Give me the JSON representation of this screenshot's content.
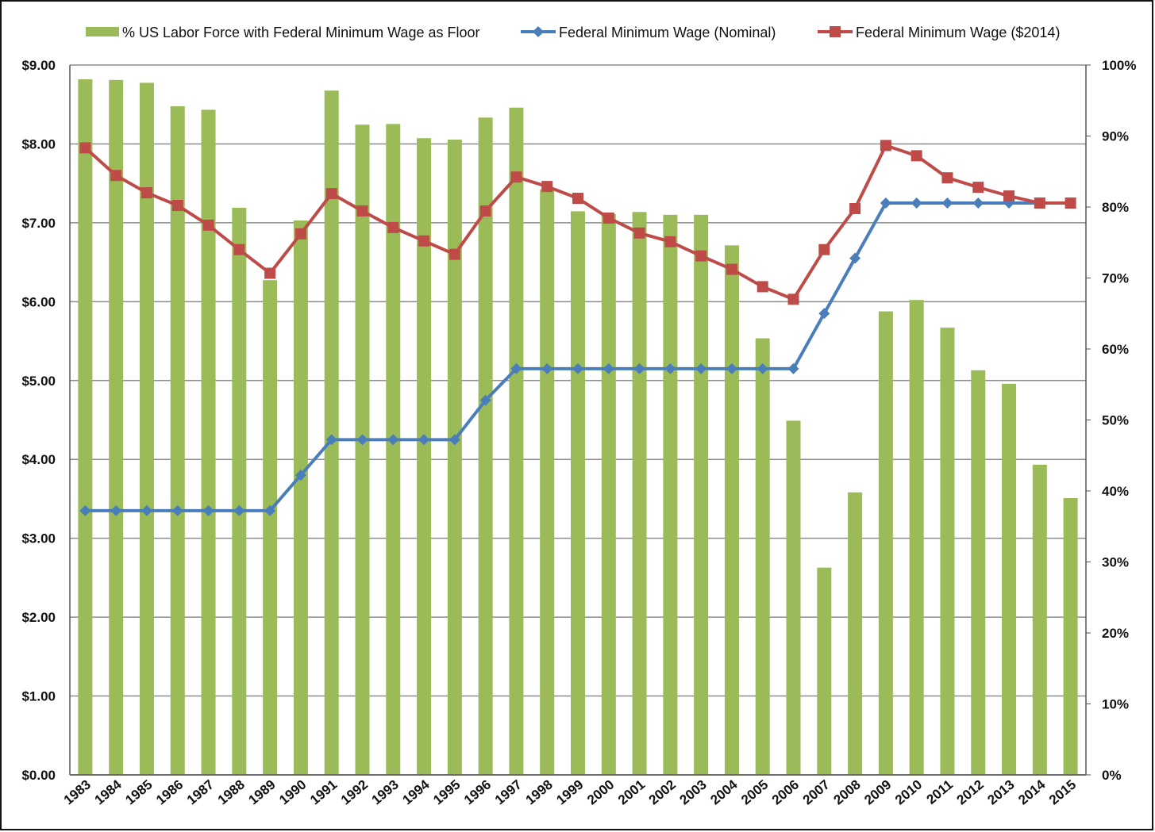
{
  "chart_data": {
    "type": "bar-line",
    "categories": [
      "1983",
      "1984",
      "1985",
      "1986",
      "1987",
      "1988",
      "1989",
      "1990",
      "1991",
      "1992",
      "1993",
      "1994",
      "1995",
      "1996",
      "1997",
      "1998",
      "1999",
      "2000",
      "2001",
      "2002",
      "2003",
      "2004",
      "2005",
      "2006",
      "2007",
      "2008",
      "2009",
      "2010",
      "2011",
      "2012",
      "2013",
      "2014",
      "2015"
    ],
    "series": [
      {
        "name": "% US Labor Force with Federal Minimum Wage as Floor",
        "type": "bar",
        "axis": "y2",
        "color": "#9bbb59",
        "values": [
          98.0,
          97.9,
          97.5,
          94.2,
          93.7,
          79.9,
          69.7,
          78.1,
          96.4,
          91.6,
          91.7,
          89.7,
          89.5,
          92.6,
          94.0,
          82.5,
          79.4,
          79.0,
          79.3,
          78.9,
          78.9,
          74.6,
          61.5,
          49.9,
          29.2,
          39.8,
          65.3,
          66.9,
          63.0,
          57.0,
          55.1,
          43.7,
          39.0
        ]
      },
      {
        "name": "Federal Minimum Wage (Nominal)",
        "type": "line",
        "marker": "diamond",
        "color": "#4a7ebb",
        "values": [
          3.35,
          3.35,
          3.35,
          3.35,
          3.35,
          3.35,
          3.35,
          3.8,
          4.25,
          4.25,
          4.25,
          4.25,
          4.25,
          4.75,
          5.15,
          5.15,
          5.15,
          5.15,
          5.15,
          5.15,
          5.15,
          5.15,
          5.15,
          5.15,
          5.85,
          6.55,
          7.25,
          7.25,
          7.25,
          7.25,
          7.25,
          7.25,
          7.25
        ]
      },
      {
        "name": "Federal Minimum Wage ($2014)",
        "type": "line",
        "marker": "square",
        "color": "#be4b48",
        "values": [
          7.95,
          7.6,
          7.38,
          7.22,
          6.97,
          6.66,
          6.36,
          6.86,
          7.37,
          7.15,
          6.94,
          6.77,
          6.6,
          7.15,
          7.58,
          7.46,
          7.31,
          7.06,
          6.87,
          6.76,
          6.58,
          6.41,
          6.19,
          6.03,
          6.66,
          7.18,
          7.98,
          7.85,
          7.57,
          7.45,
          7.34,
          7.25,
          7.25
        ]
      }
    ],
    "ylim": [
      0,
      9
    ],
    "yticks": [
      {
        "value": 0,
        "label": "$0.00"
      },
      {
        "value": 1,
        "label": "$1.00"
      },
      {
        "value": 2,
        "label": "$2.00"
      },
      {
        "value": 3,
        "label": "$3.00"
      },
      {
        "value": 4,
        "label": "$4.00"
      },
      {
        "value": 5,
        "label": "$5.00"
      },
      {
        "value": 6,
        "label": "$6.00"
      },
      {
        "value": 7,
        "label": "$7.00"
      },
      {
        "value": 8,
        "label": "$8.00"
      },
      {
        "value": 9,
        "label": "$9.00"
      }
    ],
    "y2lim": [
      0,
      100
    ],
    "y2ticks": [
      {
        "value": 0,
        "label": "0%"
      },
      {
        "value": 10,
        "label": "10%"
      },
      {
        "value": 20,
        "label": "20%"
      },
      {
        "value": 30,
        "label": "30%"
      },
      {
        "value": 40,
        "label": "40%"
      },
      {
        "value": 50,
        "label": "50%"
      },
      {
        "value": 60,
        "label": "60%"
      },
      {
        "value": 70,
        "label": "70%"
      },
      {
        "value": 80,
        "label": "80%"
      },
      {
        "value": 90,
        "label": "90%"
      },
      {
        "value": 100,
        "label": "100%"
      }
    ],
    "grid": true,
    "legend": "top"
  }
}
